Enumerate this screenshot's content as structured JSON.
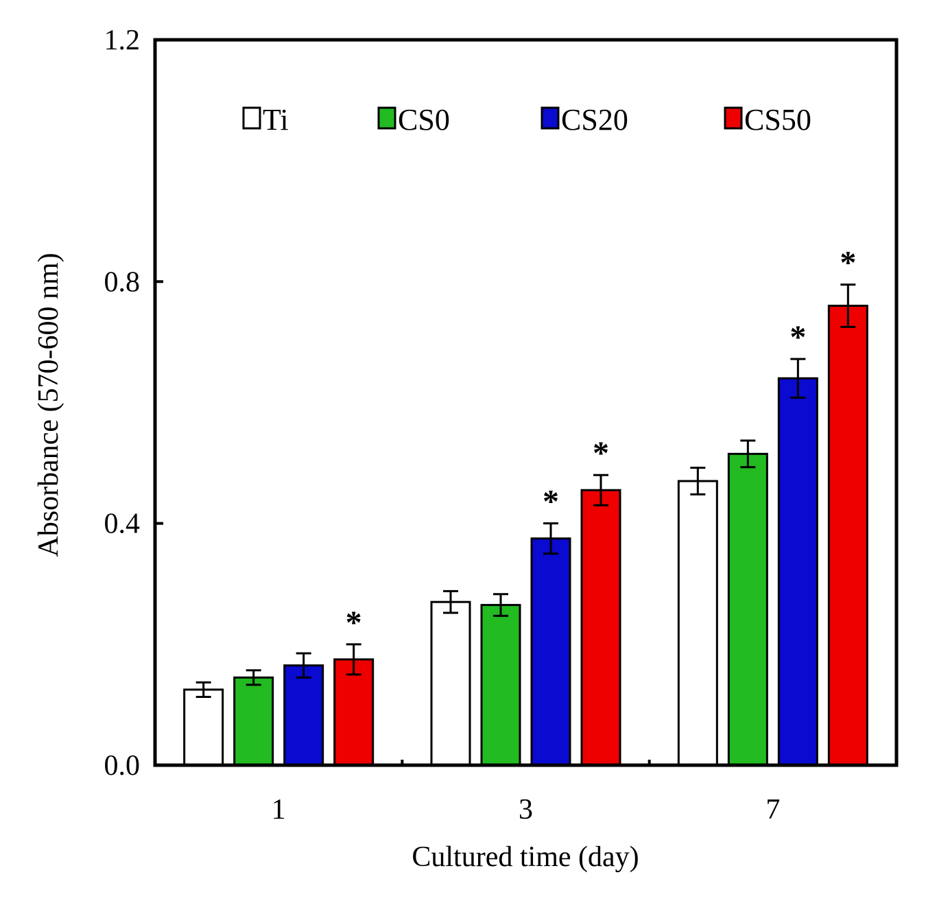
{
  "chart_data": {
    "type": "bar",
    "title": "",
    "xlabel": "Cultured time (day)",
    "ylabel": "Absorbance (570-600 nm)",
    "categories": [
      "1",
      "3",
      "7"
    ],
    "ylim": [
      0.0,
      1.2
    ],
    "yticks": [
      "0.0",
      "0.4",
      "0.8",
      "1.2"
    ],
    "ytick_values": [
      0.0,
      0.4,
      0.8,
      1.2
    ],
    "grid": false,
    "legend_position": "top",
    "significance_marker": "*",
    "series": [
      {
        "name": "Ti",
        "color": "#ffffff",
        "values": [
          0.125,
          0.27,
          0.47
        ],
        "errors": [
          0.012,
          0.018,
          0.022
        ],
        "significant": [
          false,
          false,
          false
        ]
      },
      {
        "name": "CS0",
        "color": "#22bb22",
        "values": [
          0.145,
          0.265,
          0.515
        ],
        "errors": [
          0.012,
          0.018,
          0.022
        ],
        "significant": [
          false,
          false,
          false
        ]
      },
      {
        "name": "CS20",
        "color": "#0a0ad0",
        "values": [
          0.165,
          0.375,
          0.64
        ],
        "errors": [
          0.02,
          0.025,
          0.032
        ],
        "significant": [
          false,
          true,
          true
        ]
      },
      {
        "name": "CS50",
        "color": "#ee0000",
        "values": [
          0.175,
          0.455,
          0.76
        ],
        "errors": [
          0.025,
          0.025,
          0.035
        ],
        "significant": [
          true,
          true,
          true
        ]
      }
    ]
  }
}
